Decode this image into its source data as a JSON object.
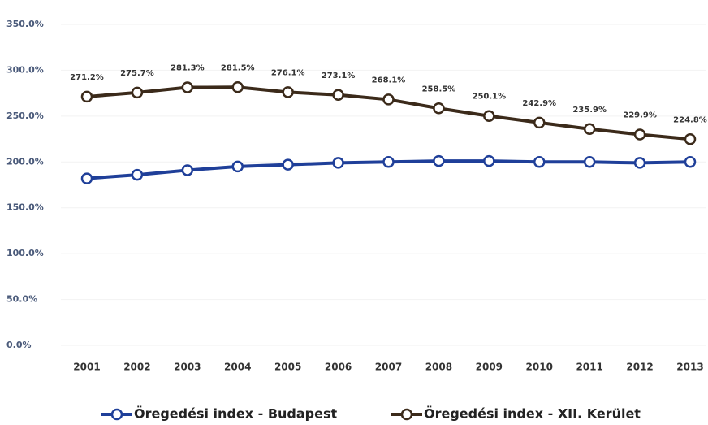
{
  "chart_data": {
    "type": "line",
    "categories": [
      "2001",
      "2002",
      "2003",
      "2004",
      "2005",
      "2006",
      "2007",
      "2008",
      "2009",
      "2010",
      "2011",
      "2012",
      "2013"
    ],
    "series": [
      {
        "name": "Öregedési index - Budapest",
        "color": "#1f3f99",
        "values": [
          182,
          186,
          191,
          195,
          197,
          199,
          200,
          201,
          201,
          200,
          200,
          199,
          200
        ]
      },
      {
        "name": "Öregedési index - XII. Kerület",
        "color": "#3b2a1a",
        "values": [
          271.2,
          275.7,
          281.3,
          281.5,
          276.1,
          273.1,
          268.1,
          258.5,
          250.1,
          242.9,
          235.9,
          229.9,
          224.8
        ],
        "value_labels": [
          "271.2%",
          "275.7%",
          "281.3%",
          "281.5%",
          "276.1%",
          "273.1%",
          "268.1%",
          "258.5%",
          "250.1%",
          "242.9%",
          "235.9%",
          "229.9%",
          "224.8%"
        ]
      }
    ],
    "ylim": [
      0,
      350
    ],
    "yticks": [
      {
        "value": 0,
        "label": "0.0%"
      },
      {
        "value": 50,
        "label": "50.0%"
      },
      {
        "value": 100,
        "label": "100.0%"
      },
      {
        "value": 150,
        "label": "150.0%"
      },
      {
        "value": 200,
        "label": "200.0%"
      },
      {
        "value": 250,
        "label": "250.0%"
      },
      {
        "value": 300,
        "label": "300.0%"
      },
      {
        "value": 350,
        "label": "350.0%"
      }
    ],
    "grid": true,
    "legend": "bottom"
  }
}
